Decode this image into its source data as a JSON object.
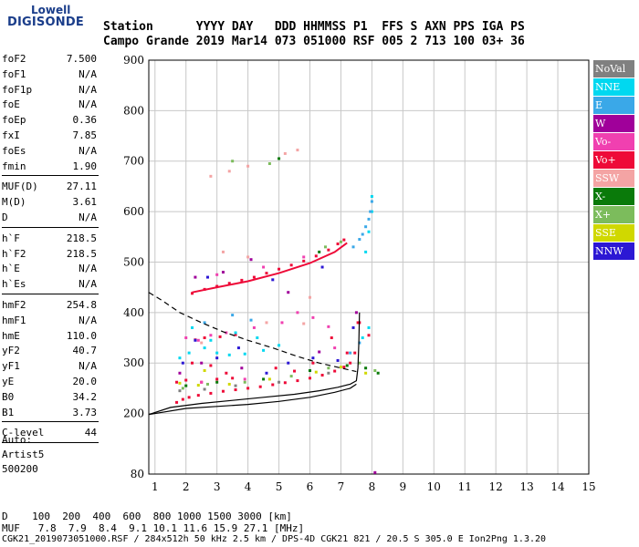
{
  "logo": {
    "line1": "Lowell",
    "line2": "DIGISONDE"
  },
  "header": {
    "row1": "Station      YYYY DAY   DDD HHMMSS P1  FFS S AXN PPS IGA PS",
    "row2": "Campo Grande 2019 Mar14 073 051000 RSF 005 2 713 100 03+ 36"
  },
  "params_group1": [
    {
      "key": "foF2",
      "value": "7.500"
    },
    {
      "key": "foF1",
      "value": "N/A"
    },
    {
      "key": "foF1p",
      "value": "N/A"
    },
    {
      "key": "foE",
      "value": "N/A"
    },
    {
      "key": "foEp",
      "value": "0.36"
    },
    {
      "key": "fxI",
      "value": "7.85"
    },
    {
      "key": "foEs",
      "value": "N/A"
    },
    {
      "key": "fmin",
      "value": "1.90"
    }
  ],
  "params_group2": [
    {
      "key": "MUF(D)",
      "value": "27.11"
    },
    {
      "key": "M(D)",
      "value": "3.61"
    },
    {
      "key": "D",
      "value": "N/A"
    }
  ],
  "params_group3": [
    {
      "key": "h`F",
      "value": "218.5"
    },
    {
      "key": "h`F2",
      "value": "218.5"
    },
    {
      "key": "h`E",
      "value": "N/A"
    },
    {
      "key": "h`Es",
      "value": "N/A"
    }
  ],
  "params_group4": [
    {
      "key": "hmF2",
      "value": "254.8"
    },
    {
      "key": "hmF1",
      "value": "N/A"
    },
    {
      "key": "hmE",
      "value": "110.0"
    },
    {
      "key": "yF2",
      "value": "40.7"
    },
    {
      "key": "yF1",
      "value": "N/A"
    },
    {
      "key": "yE",
      "value": "20.0"
    },
    {
      "key": "B0",
      "value": "34.2"
    },
    {
      "key": "B1",
      "value": "3.73"
    }
  ],
  "params_group5": [
    {
      "key": "C-level",
      "value": "44"
    }
  ],
  "autoscaling": {
    "line1": "Auto:",
    "line2": "Artist5",
    "line3": "500200"
  },
  "legend": [
    {
      "label": "NoVal",
      "color": "#808080",
      "text": "#ffffff"
    },
    {
      "label": "NNE",
      "color": "#00d8f0",
      "text": "#ffffff"
    },
    {
      "label": "E",
      "color": "#3aa8e8",
      "text": "#ffffff"
    },
    {
      "label": "W",
      "color": "#a0009a",
      "text": "#ffffff"
    },
    {
      "label": "Vo-",
      "color": "#f040b0",
      "text": "#ffffff"
    },
    {
      "label": "Vo+",
      "color": "#ee0a38",
      "text": "#ffffff"
    },
    {
      "label": "SSW",
      "color": "#f4a4a4",
      "text": "#ffffff"
    },
    {
      "label": "X-",
      "color": "#0a7a0a",
      "text": "#ffffff"
    },
    {
      "label": "X+",
      "color": "#7cbc5c",
      "text": "#ffffff"
    },
    {
      "label": "SSE",
      "color": "#d0d800",
      "text": "#ffffff"
    },
    {
      "label": "NNW",
      "color": "#2c18d4",
      "text": "#ffffff"
    }
  ],
  "footer": {
    "line1": "D    100  200  400  600  800 1000 1500 3000 [km]",
    "line2": "MUF   7.8  7.9  8.4  9.1 10.1 11.6 15.9 27.1 [MHz]",
    "line3": "CGK21_2019073051000.RSF / 284x512h 50 kHz 2.5 km / DPS-4D CGK21 821 / 20.5 S 305.0 E Ion2Png 1.3.20"
  },
  "chart_data": {
    "type": "scatter",
    "title": "",
    "xlabel": "",
    "ylabel": "",
    "xlim": [
      0.8,
      15
    ],
    "ylim": [
      80,
      900
    ],
    "x_ticks": [
      1,
      2,
      3,
      4,
      5,
      6,
      7,
      8,
      9,
      10,
      11,
      12,
      13,
      14,
      15
    ],
    "y_ticks": [
      80,
      200,
      300,
      400,
      500,
      600,
      700,
      800,
      900
    ],
    "grid": true,
    "legend_position": "right",
    "series": [
      {
        "name": "Vo+",
        "color": "#ee0a38",
        "points": [
          [
            1.7,
            222
          ],
          [
            1.9,
            228
          ],
          [
            2.1,
            232
          ],
          [
            2.4,
            236
          ],
          [
            2.8,
            240
          ],
          [
            3.2,
            244
          ],
          [
            3.6,
            247
          ],
          [
            4.0,
            250
          ],
          [
            4.4,
            253
          ],
          [
            4.8,
            257
          ],
          [
            5.2,
            261
          ],
          [
            5.6,
            265
          ],
          [
            6.0,
            270
          ],
          [
            6.4,
            276
          ],
          [
            6.8,
            284
          ],
          [
            7.1,
            292
          ],
          [
            7.3,
            300
          ],
          [
            7.45,
            320
          ],
          [
            7.55,
            380
          ],
          [
            1.7,
            262
          ],
          [
            2.0,
            266
          ],
          [
            2.5,
            262
          ],
          [
            3.0,
            268
          ],
          [
            3.5,
            270
          ],
          [
            2.2,
            438
          ],
          [
            2.6,
            446
          ],
          [
            3.0,
            452
          ],
          [
            3.4,
            458
          ],
          [
            3.8,
            464
          ],
          [
            4.2,
            470
          ],
          [
            4.6,
            478
          ],
          [
            5.0,
            486
          ],
          [
            5.4,
            494
          ],
          [
            5.8,
            502
          ],
          [
            6.2,
            512
          ],
          [
            6.6,
            524
          ],
          [
            6.9,
            536
          ],
          [
            7.1,
            544
          ],
          [
            2.3,
            346
          ],
          [
            2.6,
            350
          ],
          [
            3.1,
            352
          ],
          [
            3.6,
            356
          ],
          [
            6.7,
            350
          ],
          [
            7.2,
            320
          ],
          [
            7.6,
            380
          ],
          [
            7.9,
            355
          ],
          [
            2.2,
            300
          ],
          [
            2.8,
            295
          ],
          [
            3.3,
            280
          ],
          [
            4.9,
            290
          ],
          [
            5.5,
            284
          ],
          [
            6.1,
            300
          ]
        ]
      },
      {
        "name": "Vo-",
        "color": "#f040b0",
        "points": [
          [
            2.0,
            350
          ],
          [
            2.4,
            345
          ],
          [
            2.8,
            355
          ],
          [
            3.3,
            360
          ],
          [
            4.2,
            370
          ],
          [
            5.1,
            380
          ],
          [
            5.6,
            400
          ],
          [
            6.1,
            390
          ],
          [
            6.6,
            372
          ],
          [
            3.0,
            475
          ],
          [
            4.5,
            490
          ],
          [
            5.8,
            510
          ],
          [
            2.5,
            262
          ],
          [
            3.9,
            268
          ],
          [
            6.8,
            330
          ]
        ]
      },
      {
        "name": "NNE",
        "color": "#00d8f0",
        "points": [
          [
            2.2,
            370
          ],
          [
            2.6,
            330
          ],
          [
            3.0,
            320
          ],
          [
            3.4,
            316
          ],
          [
            3.9,
            318
          ],
          [
            4.5,
            325
          ],
          [
            5.0,
            335
          ],
          [
            1.8,
            310
          ],
          [
            2.1,
            320
          ],
          [
            2.8,
            345
          ],
          [
            3.6,
            360
          ],
          [
            4.3,
            350
          ],
          [
            7.7,
            350
          ],
          [
            7.9,
            370
          ],
          [
            7.8,
            520
          ],
          [
            7.9,
            560
          ],
          [
            8.0,
            600
          ],
          [
            8.0,
            630
          ]
        ]
      },
      {
        "name": "E",
        "color": "#3aa8e8",
        "points": [
          [
            7.4,
            530
          ],
          [
            7.6,
            545
          ],
          [
            7.7,
            555
          ],
          [
            7.8,
            570
          ],
          [
            7.9,
            585
          ],
          [
            7.95,
            600
          ],
          [
            8.0,
            620
          ],
          [
            7.3,
            320
          ],
          [
            7.6,
            340
          ],
          [
            2.6,
            380
          ],
          [
            3.5,
            395
          ],
          [
            4.1,
            385
          ]
        ]
      },
      {
        "name": "W",
        "color": "#a0009a",
        "points": [
          [
            1.8,
            280
          ],
          [
            2.3,
            470
          ],
          [
            3.2,
            480
          ],
          [
            4.1,
            505
          ],
          [
            5.3,
            440
          ],
          [
            6.3,
            322
          ],
          [
            7.5,
            400
          ],
          [
            8.1,
            83
          ],
          [
            2.5,
            300
          ],
          [
            3.8,
            290
          ]
        ]
      },
      {
        "name": "SSW",
        "color": "#f4a4a4",
        "points": [
          [
            2.8,
            670
          ],
          [
            3.4,
            680
          ],
          [
            4.0,
            690
          ],
          [
            5.2,
            715
          ],
          [
            5.6,
            722
          ],
          [
            3.2,
            520
          ],
          [
            4.0,
            510
          ],
          [
            2.5,
            340
          ],
          [
            4.6,
            380
          ],
          [
            5.8,
            378
          ],
          [
            6.0,
            430
          ]
        ]
      },
      {
        "name": "X-",
        "color": "#0a7a0a",
        "points": [
          [
            2.0,
            255
          ],
          [
            3.0,
            262
          ],
          [
            4.5,
            268
          ],
          [
            6.0,
            285
          ],
          [
            7.2,
            295
          ],
          [
            7.8,
            290
          ],
          [
            8.2,
            280
          ],
          [
            5.0,
            705
          ],
          [
            6.3,
            520
          ]
        ]
      },
      {
        "name": "X+",
        "color": "#7cbc5c",
        "points": [
          [
            1.9,
            250
          ],
          [
            2.7,
            258
          ],
          [
            3.9,
            262
          ],
          [
            5.4,
            274
          ],
          [
            6.6,
            290
          ],
          [
            7.6,
            300
          ],
          [
            8.1,
            285
          ],
          [
            3.5,
            700
          ],
          [
            4.7,
            695
          ],
          [
            6.5,
            530
          ],
          [
            7.0,
            540
          ]
        ]
      },
      {
        "name": "SSE",
        "color": "#d0d800",
        "points": [
          [
            1.8,
            260
          ],
          [
            2.4,
            256
          ],
          [
            3.4,
            258
          ],
          [
            4.7,
            268
          ],
          [
            6.2,
            282
          ],
          [
            7.0,
            292
          ],
          [
            7.8,
            280
          ],
          [
            2.6,
            285
          ]
        ]
      },
      {
        "name": "NNW",
        "color": "#2c18d4",
        "points": [
          [
            1.9,
            300
          ],
          [
            2.3,
            345
          ],
          [
            3.0,
            310
          ],
          [
            3.7,
            330
          ],
          [
            4.6,
            280
          ],
          [
            5.3,
            300
          ],
          [
            6.1,
            310
          ],
          [
            6.9,
            305
          ],
          [
            7.4,
            370
          ],
          [
            2.7,
            470
          ],
          [
            4.8,
            465
          ],
          [
            6.4,
            490
          ]
        ]
      },
      {
        "name": "NoVal",
        "color": "#808080",
        "points": [
          [
            1.8,
            245
          ],
          [
            2.6,
            248
          ],
          [
            3.6,
            255
          ],
          [
            5.0,
            262
          ],
          [
            6.6,
            280
          ]
        ]
      }
    ],
    "curves": [
      {
        "style": "solid",
        "color": "#000000",
        "points": [
          [
            0.8,
            198
          ],
          [
            1.5,
            212
          ],
          [
            2.5,
            220
          ],
          [
            3.5,
            226
          ],
          [
            4.5,
            232
          ],
          [
            5.5,
            238
          ],
          [
            6.3,
            245
          ],
          [
            6.9,
            252
          ],
          [
            7.3,
            258
          ],
          [
            7.5,
            265
          ],
          [
            7.55,
            290
          ],
          [
            7.58,
            340
          ],
          [
            7.6,
            400
          ]
        ]
      },
      {
        "style": "solid",
        "color": "#000000",
        "points": [
          [
            0.8,
            198
          ],
          [
            2.0,
            210
          ],
          [
            3.0,
            214
          ],
          [
            4.0,
            218
          ],
          [
            5.0,
            224
          ],
          [
            6.0,
            232
          ],
          [
            6.8,
            242
          ],
          [
            7.3,
            250
          ],
          [
            7.5,
            258
          ]
        ]
      },
      {
        "style": "dashed",
        "color": "#000000",
        "points": [
          [
            0.8,
            440
          ],
          [
            1.2,
            425
          ],
          [
            1.8,
            400
          ],
          [
            2.5,
            380
          ],
          [
            3.2,
            362
          ],
          [
            4.0,
            345
          ],
          [
            4.8,
            330
          ],
          [
            5.6,
            313
          ],
          [
            6.3,
            300
          ],
          [
            7.0,
            290
          ],
          [
            7.5,
            283
          ]
        ]
      },
      {
        "style": "solid",
        "color": "#ee0a38",
        "points": [
          [
            2.2,
            440
          ],
          [
            3.0,
            450
          ],
          [
            4.0,
            462
          ],
          [
            5.0,
            478
          ],
          [
            6.0,
            498
          ],
          [
            6.8,
            520
          ],
          [
            7.2,
            538
          ]
        ]
      }
    ]
  }
}
